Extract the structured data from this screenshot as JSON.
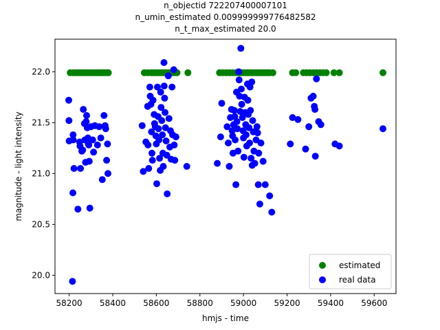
{
  "chart_data": {
    "type": "scatter",
    "title_lines": [
      "n_objectid 722207400007101",
      "n_umin_estimated 0.009999999776482582",
      "n_t_max_estimated 20.0"
    ],
    "xlabel": "hmjs - time",
    "ylabel": "magnitude - light intensity",
    "xlim": [
      58135,
      59700
    ],
    "ylim": [
      19.82,
      22.32
    ],
    "x_ticks": [
      58200,
      58400,
      58600,
      58800,
      59000,
      59200,
      59400,
      59600
    ],
    "y_ticks": [
      20.0,
      20.5,
      21.0,
      21.5,
      22.0
    ],
    "x_tick_labels": [
      "58200",
      "58400",
      "58600",
      "58800",
      "59000",
      "59200",
      "59400",
      "59600"
    ],
    "y_tick_labels": [
      "20.0",
      "20.5",
      "21.0",
      "21.5",
      "22.0"
    ],
    "legend_position": "lower-right",
    "series": [
      {
        "name": "estimated",
        "color": "#008000",
        "points": [
          [
            58205,
            21.99
          ],
          [
            58220,
            21.99
          ],
          [
            58232,
            21.99
          ],
          [
            58245,
            21.99
          ],
          [
            58255,
            21.99
          ],
          [
            58265,
            21.99
          ],
          [
            58275,
            21.99
          ],
          [
            58285,
            21.99
          ],
          [
            58295,
            21.99
          ],
          [
            58305,
            21.99
          ],
          [
            58315,
            21.99
          ],
          [
            58325,
            21.99
          ],
          [
            58335,
            21.99
          ],
          [
            58345,
            21.99
          ],
          [
            58355,
            21.99
          ],
          [
            58365,
            21.99
          ],
          [
            58375,
            21.99
          ],
          [
            58380,
            21.99
          ],
          [
            58545,
            21.99
          ],
          [
            58560,
            21.99
          ],
          [
            58575,
            21.99
          ],
          [
            58585,
            21.99
          ],
          [
            58595,
            21.99
          ],
          [
            58605,
            21.99
          ],
          [
            58615,
            21.99
          ],
          [
            58625,
            21.99
          ],
          [
            58635,
            21.99
          ],
          [
            58645,
            21.99
          ],
          [
            58655,
            21.99
          ],
          [
            58665,
            21.99
          ],
          [
            58675,
            21.99
          ],
          [
            58685,
            21.99
          ],
          [
            58695,
            21.99
          ],
          [
            58745,
            21.99
          ],
          [
            58890,
            21.99
          ],
          [
            58905,
            21.99
          ],
          [
            58920,
            21.99
          ],
          [
            58935,
            21.99
          ],
          [
            58950,
            21.99
          ],
          [
            58965,
            21.99
          ],
          [
            58980,
            21.99
          ],
          [
            58990,
            21.99
          ],
          [
            59000,
            21.99
          ],
          [
            59010,
            21.99
          ],
          [
            59020,
            21.99
          ],
          [
            59030,
            21.99
          ],
          [
            59040,
            21.99
          ],
          [
            59050,
            21.99
          ],
          [
            59060,
            21.99
          ],
          [
            59070,
            21.99
          ],
          [
            59080,
            21.99
          ],
          [
            59090,
            21.99
          ],
          [
            59100,
            21.99
          ],
          [
            59110,
            21.99
          ],
          [
            59120,
            21.99
          ],
          [
            59135,
            21.99
          ],
          [
            59225,
            21.99
          ],
          [
            59240,
            21.99
          ],
          [
            59275,
            21.99
          ],
          [
            59290,
            21.99
          ],
          [
            59305,
            21.99
          ],
          [
            59320,
            21.99
          ],
          [
            59335,
            21.99
          ],
          [
            59350,
            21.99
          ],
          [
            59365,
            21.99
          ],
          [
            59380,
            21.99
          ],
          [
            59415,
            21.99
          ],
          [
            59440,
            21.99
          ],
          [
            59640,
            21.99
          ]
        ]
      },
      {
        "name": "real data",
        "color": "#0000ff",
        "points": [
          [
            58198,
            21.72
          ],
          [
            58199,
            21.52
          ],
          [
            58200,
            21.32
          ],
          [
            58218,
            21.38
          ],
          [
            58219,
            21.33
          ],
          [
            58217,
            20.81
          ],
          [
            58222,
            21.05
          ],
          [
            58215,
            19.94
          ],
          [
            58240,
            20.65
          ],
          [
            58248,
            21.31
          ],
          [
            58250,
            21.27
          ],
          [
            58252,
            21.05
          ],
          [
            58258,
            21.22
          ],
          [
            58262,
            21.23
          ],
          [
            58265,
            21.63
          ],
          [
            58270,
            21.49
          ],
          [
            58272,
            21.33
          ],
          [
            58275,
            21.11
          ],
          [
            58278,
            21.51
          ],
          [
            58280,
            21.57
          ],
          [
            58283,
            21.45
          ],
          [
            58286,
            21.35
          ],
          [
            58288,
            21.29
          ],
          [
            58290,
            21.28
          ],
          [
            58292,
            21.12
          ],
          [
            58295,
            20.66
          ],
          [
            58300,
            21.46
          ],
          [
            58308,
            21.33
          ],
          [
            58312,
            21.21
          ],
          [
            58318,
            21.47
          ],
          [
            58330,
            21.28
          ],
          [
            58338,
            21.46
          ],
          [
            58345,
            21.35
          ],
          [
            58352,
            20.94
          ],
          [
            58360,
            21.57
          ],
          [
            58365,
            21.47
          ],
          [
            58368,
            21.44
          ],
          [
            58372,
            21.13
          ],
          [
            58376,
            21.29
          ],
          [
            58378,
            21.0
          ],
          [
            58535,
            21.47
          ],
          [
            58540,
            21.02
          ],
          [
            58552,
            21.31
          ],
          [
            58560,
            21.66
          ],
          [
            58562,
            21.28
          ],
          [
            58565,
            21.05
          ],
          [
            58570,
            21.85
          ],
          [
            58572,
            21.76
          ],
          [
            58575,
            21.68
          ],
          [
            58578,
            21.41
          ],
          [
            58580,
            21.2
          ],
          [
            58582,
            21.13
          ],
          [
            58585,
            21.72
          ],
          [
            58590,
            21.58
          ],
          [
            58592,
            21.49
          ],
          [
            58595,
            21.46
          ],
          [
            58598,
            21.37
          ],
          [
            58600,
            21.29
          ],
          [
            58602,
            20.9
          ],
          [
            58605,
            21.85
          ],
          [
            58608,
            21.56
          ],
          [
            58610,
            21.44
          ],
          [
            58612,
            21.33
          ],
          [
            58615,
            21.15
          ],
          [
            58618,
            21.03
          ],
          [
            58620,
            21.8
          ],
          [
            58622,
            21.65
          ],
          [
            58625,
            21.52
          ],
          [
            58628,
            21.38
          ],
          [
            58630,
            21.2
          ],
          [
            58632,
            21.07
          ],
          [
            58635,
            22.09
          ],
          [
            58636,
            21.86
          ],
          [
            58638,
            21.74
          ],
          [
            58640,
            21.6
          ],
          [
            58642,
            21.45
          ],
          [
            58645,
            21.32
          ],
          [
            58648,
            21.18
          ],
          [
            58650,
            20.8
          ],
          [
            58655,
            21.96
          ],
          [
            58658,
            21.54
          ],
          [
            58662,
            21.26
          ],
          [
            58665,
            21.42
          ],
          [
            58668,
            21.14
          ],
          [
            58672,
            21.85
          ],
          [
            58675,
            21.38
          ],
          [
            58680,
            22.02
          ],
          [
            58682,
            21.28
          ],
          [
            58685,
            21.13
          ],
          [
            58690,
            21.36
          ],
          [
            58740,
            21.07
          ],
          [
            58880,
            21.1
          ],
          [
            58895,
            21.36
          ],
          [
            58900,
            21.69
          ],
          [
            58925,
            21.46
          ],
          [
            58930,
            21.3
          ],
          [
            58935,
            21.07
          ],
          [
            58940,
            21.55
          ],
          [
            58945,
            21.63
          ],
          [
            58948,
            21.42
          ],
          [
            58950,
            21.37
          ],
          [
            58952,
            21.2
          ],
          [
            58955,
            21.48
          ],
          [
            58958,
            21.62
          ],
          [
            58960,
            21.56
          ],
          [
            58962,
            21.33
          ],
          [
            58965,
            20.89
          ],
          [
            58968,
            21.8
          ],
          [
            58970,
            21.51
          ],
          [
            58972,
            21.44
          ],
          [
            58975,
            21.22
          ],
          [
            58978,
            22.0
          ],
          [
            58980,
            21.92
          ],
          [
            58982,
            21.76
          ],
          [
            58985,
            21.61
          ],
          [
            58988,
            22.23
          ],
          [
            58990,
            21.83
          ],
          [
            58992,
            21.68
          ],
          [
            58995,
            21.55
          ],
          [
            58998,
            21.42
          ],
          [
            59000,
            21.35
          ],
          [
            59002,
            21.16
          ],
          [
            59005,
            21.75
          ],
          [
            59008,
            21.6
          ],
          [
            59010,
            21.48
          ],
          [
            59012,
            21.38
          ],
          [
            59015,
            21.27
          ],
          [
            59018,
            21.88
          ],
          [
            59020,
            21.72
          ],
          [
            59022,
            21.58
          ],
          [
            59025,
            21.45
          ],
          [
            59028,
            21.3
          ],
          [
            59030,
            21.85
          ],
          [
            59032,
            21.62
          ],
          [
            59035,
            21.15
          ],
          [
            59038,
            21.9
          ],
          [
            59040,
            21.08
          ],
          [
            59042,
            21.52
          ],
          [
            59045,
            21.41
          ],
          [
            59048,
            21.22
          ],
          [
            59052,
            21.1
          ],
          [
            59058,
            21.33
          ],
          [
            59062,
            21.46
          ],
          [
            59065,
            21.4
          ],
          [
            59068,
            20.89
          ],
          [
            59070,
            21.2
          ],
          [
            59075,
            20.7
          ],
          [
            59080,
            21.3
          ],
          [
            59090,
            21.12
          ],
          [
            59100,
            20.89
          ],
          [
            59120,
            20.78
          ],
          [
            59130,
            20.62
          ],
          [
            59215,
            21.29
          ],
          [
            59225,
            21.55
          ],
          [
            59250,
            21.53
          ],
          [
            59285,
            21.24
          ],
          [
            59300,
            21.46
          ],
          [
            59310,
            21.74
          ],
          [
            59320,
            21.76
          ],
          [
            59325,
            21.66
          ],
          [
            59328,
            21.63
          ],
          [
            59330,
            21.17
          ],
          [
            59335,
            21.93
          ],
          [
            59345,
            21.51
          ],
          [
            59355,
            21.48
          ],
          [
            59420,
            21.29
          ],
          [
            59440,
            21.27
          ],
          [
            59640,
            21.44
          ]
        ]
      }
    ]
  }
}
